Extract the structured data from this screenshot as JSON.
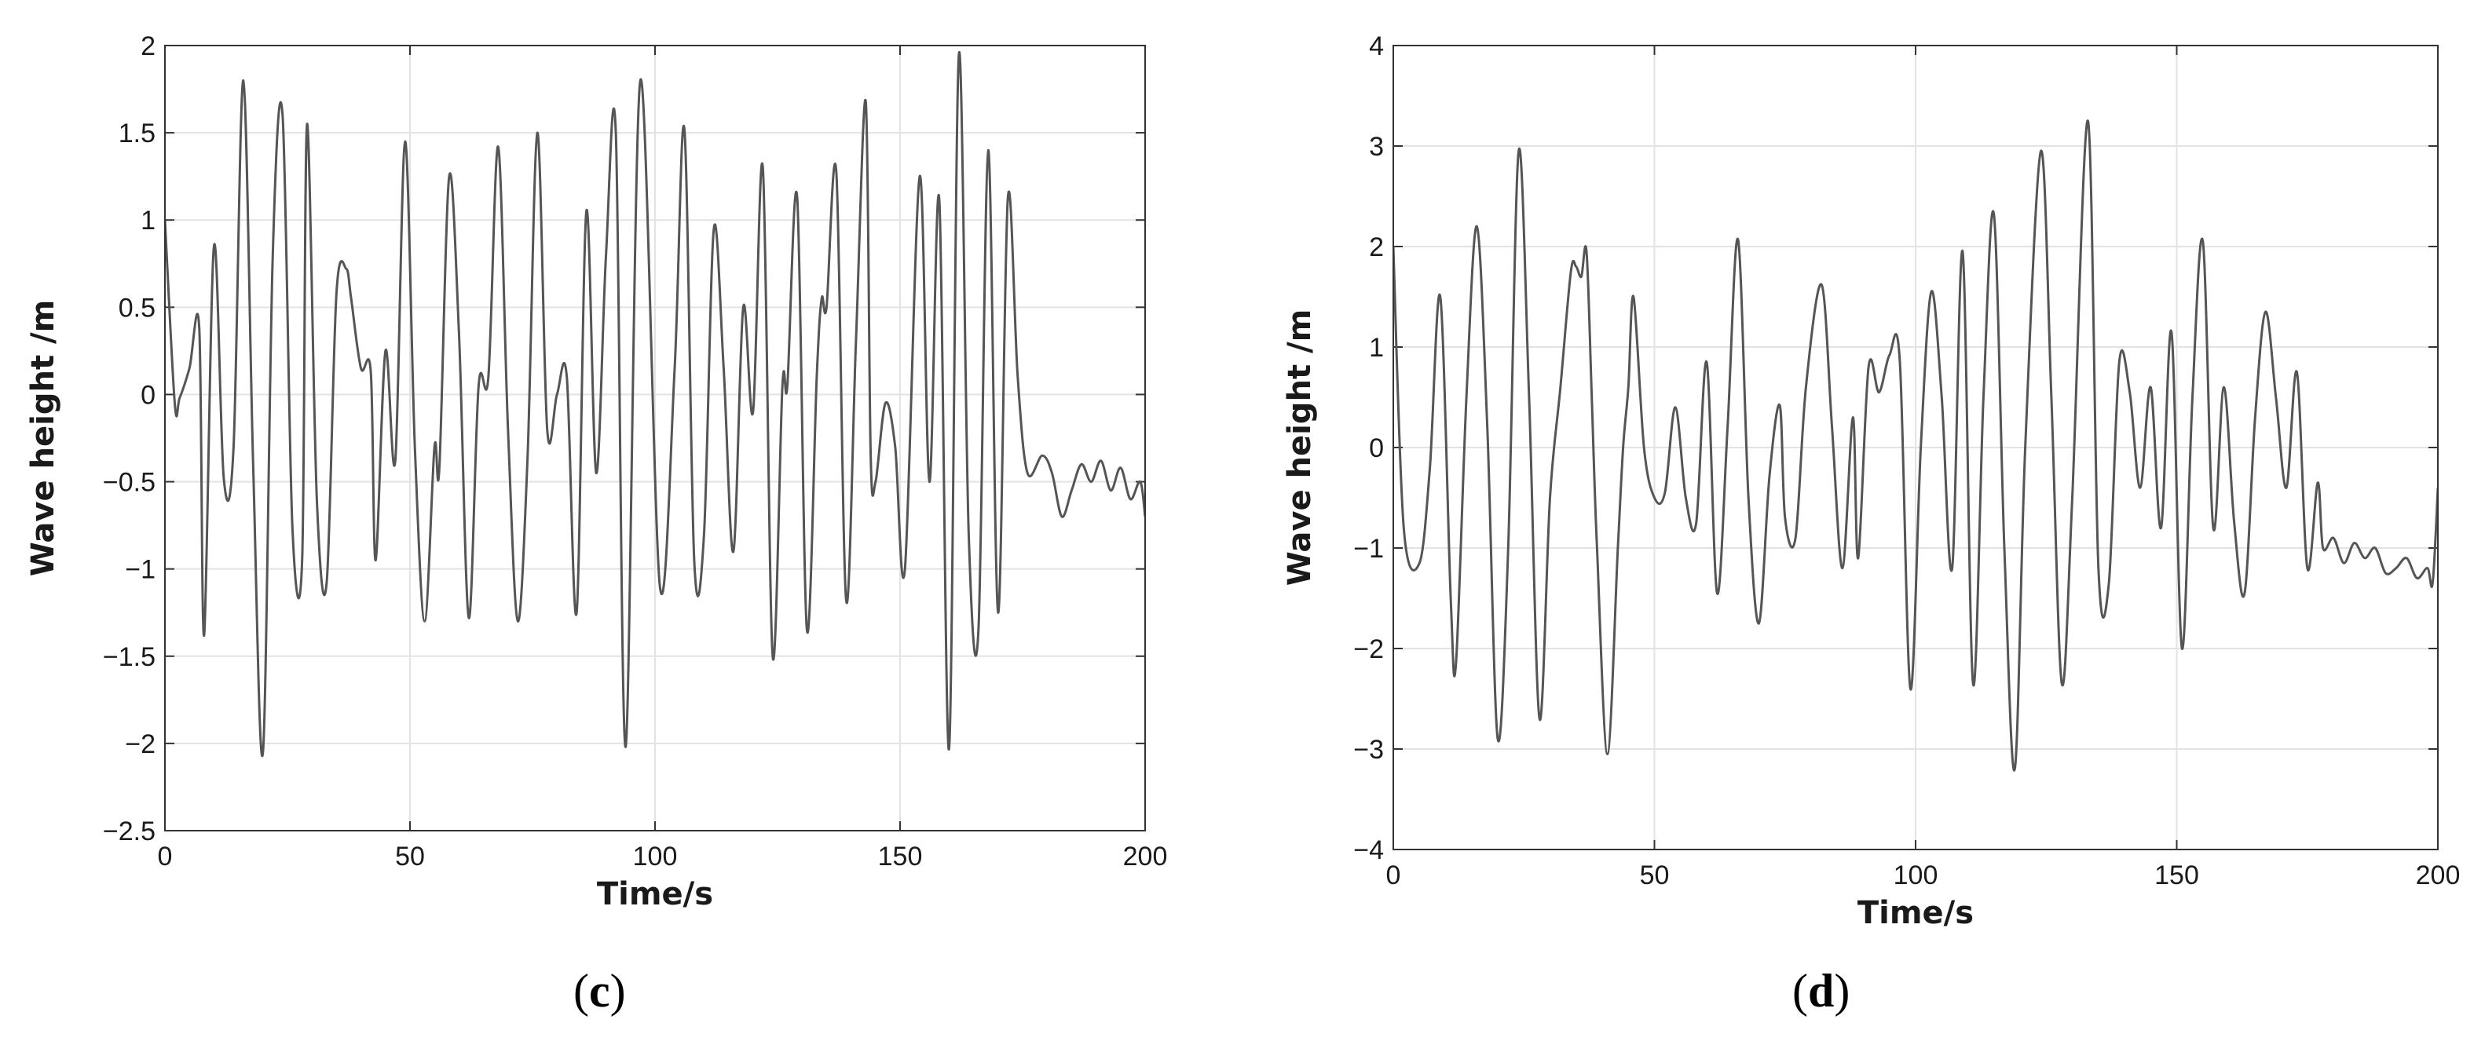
{
  "chart_data": [
    {
      "type": "line",
      "caption_open": "(",
      "caption_letter": "c",
      "caption_close": ")",
      "xlabel": "Time/s",
      "ylabel": "Wave height /m",
      "xlim": [
        0,
        200
      ],
      "ylim": [
        -2.5,
        2
      ],
      "xticks": [
        0,
        50,
        100,
        150,
        200
      ],
      "xtick_labels": [
        "0",
        "50",
        "100",
        "150",
        "200"
      ],
      "yticks": [
        -2.5,
        -2,
        -1.5,
        -1,
        -0.5,
        0,
        0.5,
        1,
        1.5,
        2
      ],
      "ytick_labels": [
        "−2.5",
        "−2",
        "−1.5",
        "−1",
        "−0.5",
        "0",
        "0.5",
        "1",
        "1.5",
        "2"
      ],
      "grid": true,
      "line_color": "#555555",
      "series": [
        {
          "x": [
            0,
            2,
            3,
            5,
            7,
            8,
            10,
            12,
            14,
            16,
            18,
            20,
            22,
            24,
            26,
            28,
            29,
            31,
            33,
            35,
            37,
            38,
            40,
            42,
            43,
            45,
            47,
            49,
            51,
            53,
            55,
            56,
            58,
            60,
            62,
            64,
            66,
            68,
            70,
            72,
            74,
            76,
            78,
            80,
            82,
            84,
            86,
            88,
            90,
            92,
            94,
            97,
            101,
            104,
            106,
            108,
            110,
            112,
            114,
            116,
            118,
            120,
            122,
            124,
            126,
            127,
            129,
            131,
            133,
            134,
            135,
            137,
            139,
            141,
            143,
            144,
            145,
            147,
            149,
            151,
            154,
            156,
            158,
            160,
            162,
            164,
            166,
            168,
            170,
            172,
            174,
            176,
            179,
            181,
            183,
            185,
            187,
            189,
            191,
            193,
            195,
            197,
            199,
            200
          ],
          "y": [
            1.0,
            -0.05,
            -0.02,
            0.15,
            0.38,
            -1.38,
            0.85,
            -0.48,
            -0.3,
            1.8,
            -0.4,
            -2.05,
            0.8,
            1.6,
            -0.75,
            -0.95,
            1.55,
            -0.6,
            -1.08,
            0.58,
            0.72,
            0.55,
            0.15,
            0.13,
            -0.95,
            0.25,
            -0.38,
            1.45,
            -0.3,
            -1.3,
            -0.3,
            -0.42,
            1.25,
            0.35,
            -1.28,
            0.05,
            0.1,
            1.42,
            -0.2,
            -1.3,
            -0.35,
            1.5,
            -0.2,
            0.0,
            0.1,
            -1.25,
            1.05,
            -0.45,
            0.8,
            1.5,
            -2.02,
            1.8,
            -1.1,
            0.15,
            1.52,
            -0.95,
            -0.8,
            0.95,
            0.15,
            -0.9,
            0.5,
            -0.1,
            1.3,
            -1.5,
            0.05,
            0.05,
            1.13,
            -1.35,
            0.1,
            0.55,
            0.5,
            1.27,
            -1.18,
            0.3,
            1.68,
            -0.35,
            -0.5,
            -0.05,
            -0.3,
            -1.0,
            1.25,
            -0.5,
            1.12,
            -2.03,
            1.95,
            -0.8,
            -1.35,
            1.4,
            -1.25,
            1.13,
            0.1,
            -0.45,
            -0.35,
            -0.45,
            -0.7,
            -0.55,
            -0.4,
            -0.5,
            -0.38,
            -0.55,
            -0.42,
            -0.6,
            -0.5,
            -0.7
          ]
        }
      ]
    },
    {
      "type": "line",
      "caption_open": "(",
      "caption_letter": "d",
      "caption_close": ")",
      "xlabel": "Time/s",
      "ylabel": "Wave height /m",
      "xlim": [
        0,
        200
      ],
      "ylim": [
        -4,
        4
      ],
      "xticks": [
        0,
        50,
        100,
        150,
        200
      ],
      "xtick_labels": [
        "0",
        "50",
        "100",
        "150",
        "200"
      ],
      "yticks": [
        -4,
        -3,
        -2,
        -1,
        0,
        1,
        2,
        3,
        4
      ],
      "ytick_labels": [
        "−4",
        "−3",
        "−2",
        "−1",
        "0",
        "1",
        "2",
        "3",
        "4"
      ],
      "grid": true,
      "line_color": "#555555",
      "series": [
        {
          "x": [
            0,
            2,
            5,
            7,
            9,
            11,
            12,
            14,
            16,
            18,
            20,
            22,
            24,
            26,
            28,
            30,
            32,
            34,
            35,
            36,
            37,
            38,
            39,
            41,
            43,
            44,
            45,
            46,
            48,
            50,
            52,
            54,
            56,
            58,
            60,
            62,
            64,
            66,
            68,
            70,
            72,
            74,
            75,
            77,
            79,
            82,
            84,
            86,
            88,
            89,
            91,
            93,
            95,
            97,
            99,
            101,
            103,
            105,
            107,
            109,
            111,
            113,
            115,
            117,
            119,
            121,
            124,
            126,
            128,
            130,
            133,
            135,
            137,
            139,
            141,
            143,
            145,
            147,
            149,
            151,
            153,
            155,
            157,
            159,
            161,
            163,
            165,
            167,
            169,
            171,
            173,
            175,
            177,
            178,
            180,
            182,
            184,
            186,
            188,
            190,
            192,
            194,
            196,
            198,
            199,
            200
          ],
          "y": [
            2.0,
            -0.8,
            -1.15,
            -0.2,
            1.5,
            -1.5,
            -2.15,
            0.5,
            2.2,
            0.2,
            -2.9,
            -1.0,
            2.95,
            0.5,
            -2.7,
            -0.5,
            0.6,
            1.75,
            1.8,
            1.7,
            1.95,
            0.5,
            -1.0,
            -3.05,
            -1.0,
            0.0,
            0.6,
            1.5,
            0.0,
            -0.5,
            -0.45,
            0.4,
            -0.5,
            -0.75,
            0.85,
            -1.45,
            0.2,
            2.07,
            -0.5,
            -1.75,
            -0.3,
            0.42,
            -0.7,
            -0.9,
            0.6,
            1.62,
            0.2,
            -1.2,
            0.3,
            -1.1,
            0.8,
            0.55,
            0.92,
            0.85,
            -2.4,
            0.0,
            1.55,
            0.5,
            -1.2,
            1.95,
            -2.35,
            0.5,
            2.32,
            -1.0,
            -3.2,
            0.0,
            2.95,
            0.5,
            -2.35,
            -0.5,
            3.25,
            -1.2,
            -1.35,
            0.85,
            0.55,
            -0.4,
            0.6,
            -0.8,
            1.15,
            -2.0,
            0.5,
            2.05,
            -0.8,
            0.6,
            -0.75,
            -1.45,
            0.3,
            1.35,
            0.5,
            -0.4,
            0.75,
            -1.2,
            -0.35,
            -1.0,
            -0.9,
            -1.15,
            -0.95,
            -1.1,
            -1.0,
            -1.25,
            -1.2,
            -1.1,
            -1.3,
            -1.2,
            -1.35,
            -0.4
          ]
        }
      ]
    }
  ]
}
